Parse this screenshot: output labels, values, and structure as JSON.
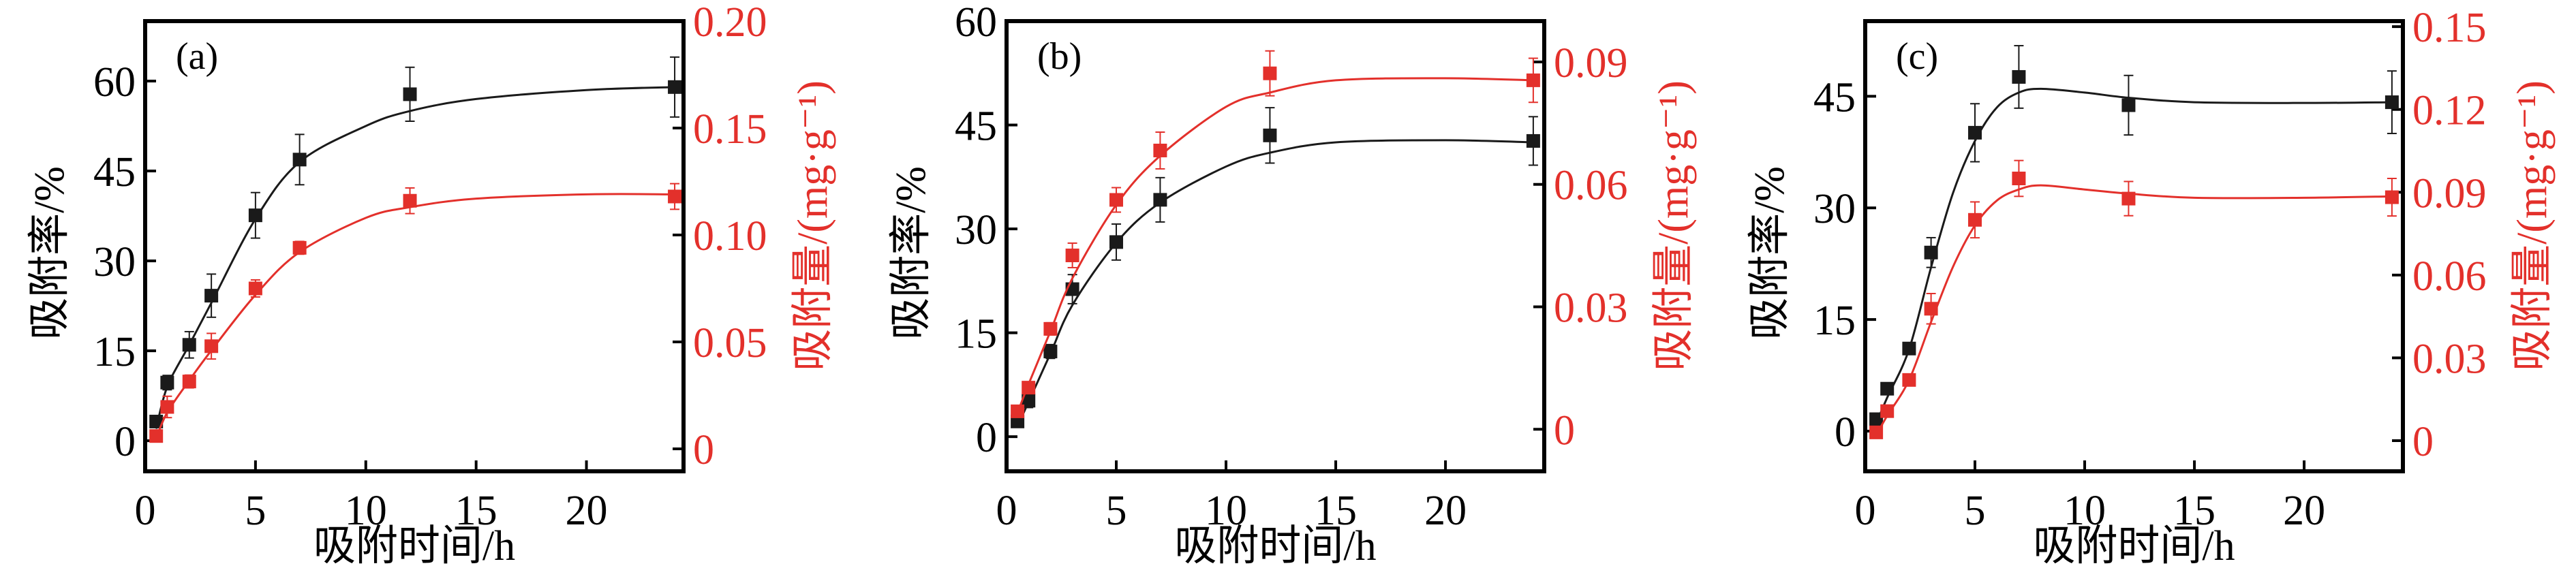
{
  "colors": {
    "rate": "#1a1a1a",
    "amount": "#e3302b",
    "frame": "#000000"
  },
  "chart_data": [
    {
      "type": "scatter",
      "panel_label": "(a)",
      "xlabel": "吸附时间/h",
      "ylabel": "吸附率/%",
      "ylabel_right": "吸附量/(mg·g⁻¹)",
      "xlim": [
        0,
        24.4
      ],
      "ylim": [
        -5.1,
        70
      ],
      "ylim_right": [
        -0.0105,
        0.2
      ],
      "xticks": [
        0,
        5,
        10,
        15,
        20
      ],
      "xtick_labels": [
        "0",
        "5",
        "10",
        "15",
        "20"
      ],
      "yticks": [
        0,
        15,
        30,
        45,
        60
      ],
      "ytick_labels": [
        "0",
        "15",
        "30",
        "45",
        "60"
      ],
      "yticks_right": [
        0,
        0.05,
        0.1,
        0.15,
        0.2
      ],
      "ytick_labels_right": [
        "0",
        "0.05",
        "0.10",
        "0.15",
        "0.20"
      ],
      "series": [
        {
          "name": "吸附率",
          "axis": "left",
          "x": [
            0.5,
            1,
            2,
            3,
            5,
            7,
            12,
            24
          ],
          "y": [
            3.2,
            9.7,
            16.0,
            24.2,
            37.6,
            46.9,
            57.8,
            59.0
          ],
          "err": [
            0.6,
            1.2,
            2.2,
            3.6,
            3.8,
            4.2,
            4.5,
            5.0
          ],
          "fit_x": [
            0.5,
            1,
            2,
            3,
            5,
            7,
            10,
            12,
            15,
            20,
            24
          ],
          "fit_y": [
            2.0,
            9.0,
            16.0,
            23.0,
            37.0,
            46.5,
            52.5,
            55.0,
            57.0,
            58.5,
            59.0
          ]
        },
        {
          "name": "吸附量",
          "axis": "right",
          "x": [
            0.5,
            1,
            2,
            3,
            5,
            7,
            12,
            24
          ],
          "y": [
            0.006,
            0.0196,
            0.0315,
            0.048,
            0.075,
            0.094,
            0.116,
            0.118
          ],
          "err": [
            0.002,
            0.005,
            0.003,
            0.006,
            0.004,
            0.003,
            0.006,
            0.006
          ],
          "fit_x": [
            0.5,
            1,
            2,
            3,
            5,
            7,
            10,
            12,
            15,
            20,
            24
          ],
          "fit_y": [
            0.005,
            0.017,
            0.032,
            0.046,
            0.072,
            0.092,
            0.108,
            0.113,
            0.117,
            0.119,
            0.119
          ]
        }
      ]
    },
    {
      "type": "scatter",
      "panel_label": "(b)",
      "xlabel": "吸附时间/h",
      "ylabel": "吸附率/%",
      "ylabel_right": "吸附量/(mg·g⁻¹)",
      "xlim": [
        0,
        24.5
      ],
      "ylim": [
        -5.0,
        60
      ],
      "ylim_right": [
        -0.0103,
        0.1
      ],
      "xticks": [
        0,
        5,
        10,
        15,
        20
      ],
      "xtick_labels": [
        "0",
        "5",
        "10",
        "15",
        "20"
      ],
      "yticks": [
        0,
        15,
        30,
        45,
        60
      ],
      "ytick_labels": [
        "0",
        "15",
        "30",
        "45",
        "60"
      ],
      "yticks_right": [
        0,
        0.03,
        0.06,
        0.09
      ],
      "ytick_labels_right": [
        "0",
        "0.03",
        "0.06",
        "0.09"
      ],
      "series": [
        {
          "name": "吸附率",
          "axis": "left",
          "x": [
            0.5,
            1,
            2,
            3,
            5,
            7,
            12,
            24
          ],
          "y": [
            2.2,
            5.2,
            12.3,
            21.3,
            28.1,
            34.2,
            43.5,
            42.7
          ],
          "err": [
            0.5,
            1.0,
            1.0,
            2.1,
            2.6,
            3.2,
            4.0,
            3.5
          ],
          "fit_x": [
            0.5,
            1,
            2,
            3,
            5,
            7,
            10,
            12,
            15,
            20,
            24
          ],
          "fit_y": [
            1.5,
            5.0,
            12.0,
            19.0,
            28.0,
            33.8,
            39.0,
            41.0,
            42.5,
            42.8,
            42.5
          ]
        },
        {
          "name": "吸附量",
          "axis": "right",
          "x": [
            0.5,
            1,
            2,
            3,
            5,
            7,
            12,
            24
          ],
          "y": [
            0.0044,
            0.0102,
            0.0246,
            0.0426,
            0.0562,
            0.0683,
            0.0872,
            0.0855
          ],
          "err": [
            0.001,
            0.0012,
            0.0015,
            0.003,
            0.003,
            0.0045,
            0.0055,
            0.0054
          ],
          "fit_x": [
            0.5,
            1,
            2,
            3,
            5,
            7,
            10,
            12,
            15,
            20,
            24
          ],
          "fit_y": [
            0.004,
            0.011,
            0.024,
            0.037,
            0.055,
            0.067,
            0.079,
            0.0825,
            0.0855,
            0.086,
            0.0855
          ]
        }
      ]
    },
    {
      "type": "scatter",
      "panel_label": "(c)",
      "xlabel": "吸附时间/h",
      "ylabel": "吸附率/%",
      "ylabel_right": "吸附量/(mg·g⁻¹)",
      "xlim": [
        0,
        24.5
      ],
      "ylim": [
        -5.4,
        55.1
      ],
      "ylim_right": [
        -0.0111,
        0.152
      ],
      "xticks": [
        0,
        5,
        10,
        15,
        20
      ],
      "xtick_labels": [
        "0",
        "5",
        "10",
        "15",
        "20"
      ],
      "yticks": [
        0,
        15,
        30,
        45
      ],
      "ytick_labels": [
        "0",
        "15",
        "30",
        "45"
      ],
      "yticks_right": [
        0,
        0.03,
        0.06,
        0.09,
        0.12,
        0.15
      ],
      "ytick_labels_right": [
        "0",
        "0.03",
        "0.06",
        "0.09",
        "0.12",
        "0.15"
      ],
      "series": [
        {
          "name": "吸附率",
          "axis": "left",
          "x": [
            0.5,
            1,
            2,
            3,
            5,
            7,
            12,
            24
          ],
          "y": [
            1.6,
            5.7,
            11.1,
            24.0,
            40.1,
            47.6,
            43.8,
            44.2
          ],
          "err": [
            0.5,
            0.8,
            0.8,
            2.0,
            3.9,
            4.2,
            4.0,
            4.2
          ],
          "fit_x": [
            0.5,
            1,
            2,
            3,
            4,
            5,
            6,
            7,
            8,
            10,
            12,
            15,
            20,
            24
          ],
          "fit_y": [
            1.0,
            4.5,
            11.0,
            22.0,
            32.0,
            39.0,
            43.5,
            45.5,
            46.0,
            45.5,
            44.8,
            44.2,
            44.1,
            44.2
          ]
        },
        {
          "name": "吸附量",
          "axis": "right",
          "x": [
            0.5,
            1,
            2,
            3,
            5,
            7,
            12,
            24
          ],
          "y": [
            0.003,
            0.0107,
            0.022,
            0.0478,
            0.08,
            0.095,
            0.0877,
            0.0882
          ],
          "err": [
            0.001,
            0.001,
            0.001,
            0.0055,
            0.0065,
            0.0065,
            0.0062,
            0.0068
          ],
          "fit_x": [
            0.5,
            1,
            2,
            3,
            4,
            5,
            6,
            7,
            8,
            10,
            12,
            15,
            20,
            24
          ],
          "fit_y": [
            0.002,
            0.009,
            0.022,
            0.043,
            0.063,
            0.078,
            0.087,
            0.091,
            0.0925,
            0.091,
            0.0895,
            0.088,
            0.088,
            0.0885
          ]
        }
      ]
    }
  ]
}
